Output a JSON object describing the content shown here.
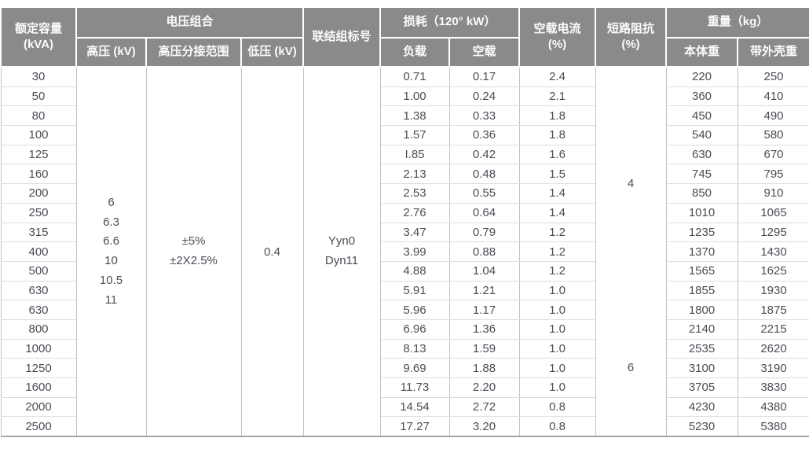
{
  "table": {
    "header": {
      "col_capacity": "额定容量\n(kVA)",
      "group_voltage": "电压组合",
      "col_hv": "高压 (kV)",
      "col_tap": "高压分接范围",
      "col_lv": "低压 (kV)",
      "col_vector": "联结组标号",
      "group_loss": "损耗（120° kW）",
      "col_load_loss": "负载",
      "col_noload_loss": "空载",
      "col_noload_current": "空载电流\n(%)",
      "col_impedance": "短路阻抗\n(%)",
      "group_weight": "重量（kg）",
      "col_body_weight": "本体重",
      "col_shell_weight": "带外壳重"
    },
    "merged": {
      "hv_voltages": "6\n6.3\n6.6\n10\n10.5\n11",
      "tap_range": "±5%\n±2X2.5%",
      "lv_voltage": "0.4",
      "vector_group": "Yyn0\nDyn11",
      "impedance_group1": "4",
      "impedance_group2": "6"
    },
    "rows": [
      {
        "capacity": "30",
        "load": "0.71",
        "noload": "0.17",
        "current": "2.4",
        "body": "220",
        "shell": "250"
      },
      {
        "capacity": "50",
        "load": "1.00",
        "noload": "0.24",
        "current": "2.1",
        "body": "360",
        "shell": "410"
      },
      {
        "capacity": "80",
        "load": "1.38",
        "noload": "0.33",
        "current": "1.8",
        "body": "450",
        "shell": "490"
      },
      {
        "capacity": "100",
        "load": "1.57",
        "noload": "0.36",
        "current": "1.8",
        "body": "540",
        "shell": "580"
      },
      {
        "capacity": "125",
        "load": "I.85",
        "noload": "0.42",
        "current": "1.6",
        "body": "630",
        "shell": "670"
      },
      {
        "capacity": "160",
        "load": "2.13",
        "noload": "0.48",
        "current": "1.5",
        "body": "745",
        "shell": "795"
      },
      {
        "capacity": "200",
        "load": "2.53",
        "noload": "0.55",
        "current": "1.4",
        "body": "850",
        "shell": "910"
      },
      {
        "capacity": "250",
        "load": "2.76",
        "noload": "0.64",
        "current": "1.4",
        "body": "1010",
        "shell": "1065"
      },
      {
        "capacity": "315",
        "load": "3.47",
        "noload": "0.79",
        "current": "1.2",
        "body": "1235",
        "shell": "1295"
      },
      {
        "capacity": "400",
        "load": "3.99",
        "noload": "0.88",
        "current": "1.2",
        "body": "1370",
        "shell": "1430"
      },
      {
        "capacity": "500",
        "load": "4.88",
        "noload": "1.04",
        "current": "1.2",
        "body": "1565",
        "shell": "1625"
      },
      {
        "capacity": "630",
        "load": "5.91",
        "noload": "1.21",
        "current": "1.0",
        "body": "1855",
        "shell": "1930"
      },
      {
        "capacity": "630",
        "load": "5.96",
        "noload": "1.17",
        "current": "1.0",
        "body": "1800",
        "shell": "1875"
      },
      {
        "capacity": "800",
        "load": "6.96",
        "noload": "1.36",
        "current": "1.0",
        "body": "2140",
        "shell": "2215"
      },
      {
        "capacity": "1000",
        "load": "8.13",
        "noload": "1.59",
        "current": "1.0",
        "body": "2535",
        "shell": "2620"
      },
      {
        "capacity": "1250",
        "load": "9.69",
        "noload": "1.88",
        "current": "1.0",
        "body": "3100",
        "shell": "3190"
      },
      {
        "capacity": "1600",
        "load": "11.73",
        "noload": "2.20",
        "current": "1.0",
        "body": "3705",
        "shell": "3830"
      },
      {
        "capacity": "2000",
        "load": "14.54",
        "noload": "2.72",
        "current": "0.8",
        "body": "4230",
        "shell": "4380"
      },
      {
        "capacity": "2500",
        "load": "17.27",
        "noload": "3.20",
        "current": "0.8",
        "body": "5230",
        "shell": "5380"
      }
    ],
    "colors": {
      "header_background": "#8a8a8a",
      "header_text": "#fbfbfb",
      "data_text": "#494e55",
      "grid_vertical": "#c2c2c2",
      "grid_horizontal": "#dedede",
      "outer_border": "#b3b3b3"
    }
  }
}
